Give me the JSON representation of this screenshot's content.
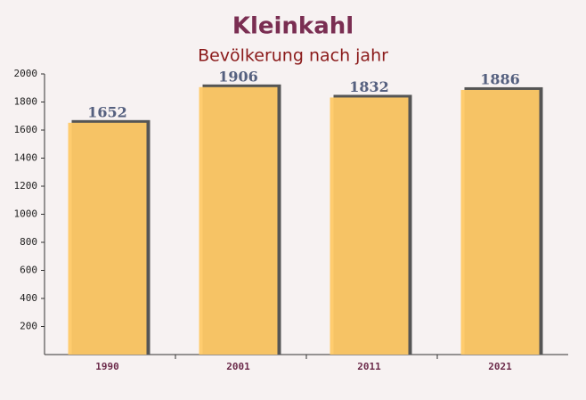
{
  "chart_data": {
    "type": "bar",
    "title": "Kleinkahl",
    "subtitle": "Bevölkerung nach jahr",
    "categories": [
      "1990",
      "2001",
      "2011",
      "2021"
    ],
    "values": [
      1652,
      1906,
      1832,
      1886
    ],
    "color": "#ffc966",
    "ylim": [
      0,
      2000
    ],
    "yticks": [
      200,
      400,
      600,
      800,
      1000,
      1200,
      1400,
      1600,
      1800,
      2000
    ]
  }
}
